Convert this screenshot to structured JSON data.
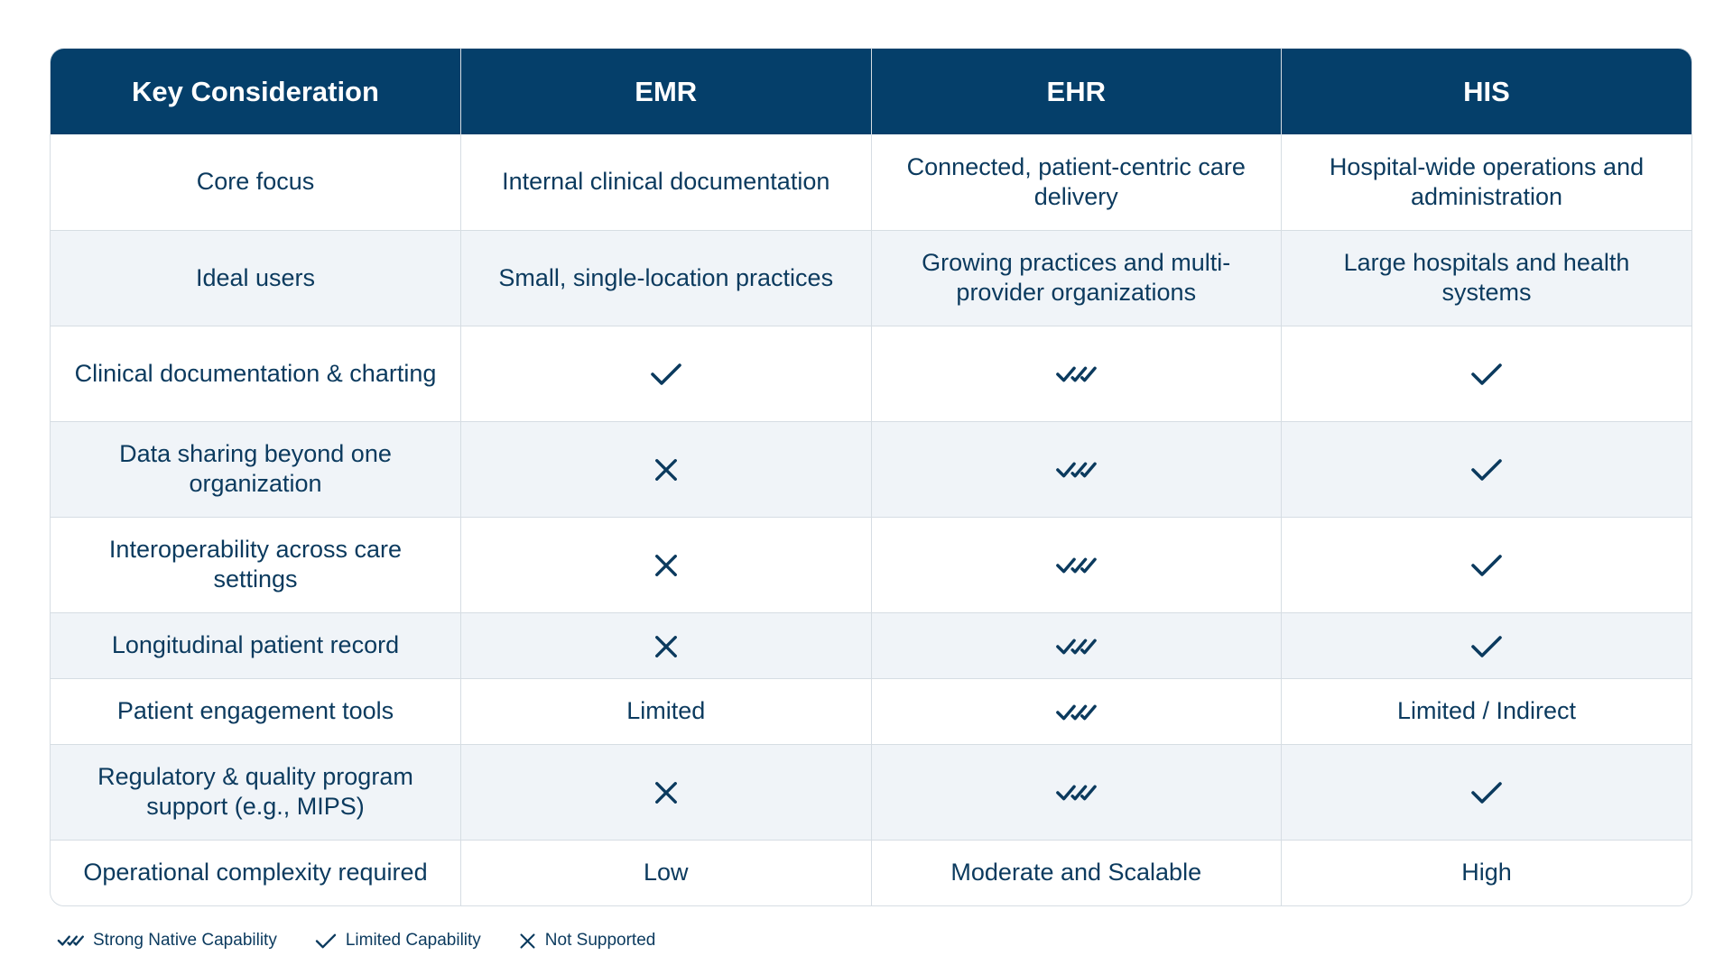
{
  "table": {
    "headers": [
      "Key Consideration",
      "EMR",
      "EHR",
      "HIS"
    ],
    "rows": [
      {
        "label": "Core focus",
        "emr": {
          "kind": "text",
          "text": "Internal clinical documentation"
        },
        "ehr": {
          "kind": "text",
          "text": "Connected, patient-centric care delivery"
        },
        "his": {
          "kind": "text",
          "text": "Hospital-wide operations and administration"
        }
      },
      {
        "label": "Ideal users",
        "emr": {
          "kind": "text",
          "text": "Small, single-location practices"
        },
        "ehr": {
          "kind": "text",
          "text": "Growing practices and multi-provider organizations"
        },
        "his": {
          "kind": "text",
          "text": "Large hospitals and health systems"
        }
      },
      {
        "label": "Clinical documentation & charting",
        "emr": {
          "kind": "limited"
        },
        "ehr": {
          "kind": "strong"
        },
        "his": {
          "kind": "limited"
        }
      },
      {
        "label": "Data sharing beyond one organization",
        "emr": {
          "kind": "none"
        },
        "ehr": {
          "kind": "strong"
        },
        "his": {
          "kind": "limited"
        }
      },
      {
        "label": "Interoperability across care settings",
        "emr": {
          "kind": "none"
        },
        "ehr": {
          "kind": "strong"
        },
        "his": {
          "kind": "limited"
        }
      },
      {
        "label": "Longitudinal patient record",
        "emr": {
          "kind": "none"
        },
        "ehr": {
          "kind": "strong"
        },
        "his": {
          "kind": "limited"
        }
      },
      {
        "label": "Patient engagement tools",
        "emr": {
          "kind": "text",
          "text": "Limited"
        },
        "ehr": {
          "kind": "strong"
        },
        "his": {
          "kind": "text",
          "text": "Limited / Indirect"
        }
      },
      {
        "label": "Regulatory & quality program support (e.g., MIPS)",
        "emr": {
          "kind": "none"
        },
        "ehr": {
          "kind": "strong"
        },
        "his": {
          "kind": "limited"
        }
      },
      {
        "label": "Operational complexity required",
        "emr": {
          "kind": "text",
          "text": "Low"
        },
        "ehr": {
          "kind": "text",
          "text": "Moderate and Scalable"
        },
        "his": {
          "kind": "text",
          "text": "High"
        }
      }
    ]
  },
  "legend": [
    {
      "icon": "double-check-icon",
      "label": "Strong Native Capability"
    },
    {
      "icon": "check-icon",
      "label": "Limited Capability"
    },
    {
      "icon": "x-icon",
      "label": "Not Supported"
    }
  ],
  "colors": {
    "header_bg": "#053f6a",
    "text": "#0b3a5e",
    "alt_row": "#f0f4f8",
    "border": "#d6dde3"
  }
}
